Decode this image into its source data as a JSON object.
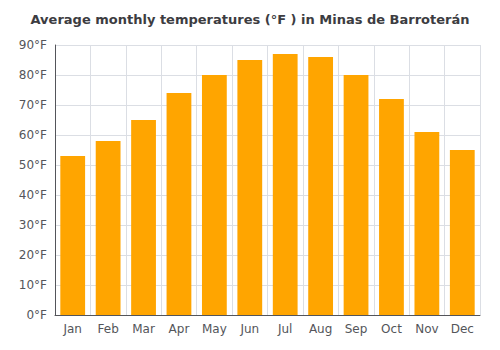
{
  "chart_data": {
    "type": "bar",
    "title": "Average monthly temperatures (°F ) in Minas de Barroterán",
    "categories": [
      "Jan",
      "Feb",
      "Mar",
      "Apr",
      "May",
      "Jun",
      "Jul",
      "Aug",
      "Sep",
      "Oct",
      "Nov",
      "Dec"
    ],
    "values": [
      53,
      58,
      65,
      74,
      80,
      85,
      87,
      86,
      80,
      72,
      61,
      55
    ],
    "color": "#FFA500",
    "ylim": [
      0,
      90
    ],
    "yticks": [
      {
        "value": 0,
        "label": "0°F"
      },
      {
        "value": 10,
        "label": "10°F"
      },
      {
        "value": 20,
        "label": "20°F"
      },
      {
        "value": 30,
        "label": "30°F"
      },
      {
        "value": 40,
        "label": "40°F"
      },
      {
        "value": 50,
        "label": "50°F"
      },
      {
        "value": 60,
        "label": "60°F"
      },
      {
        "value": 70,
        "label": "70°F"
      },
      {
        "value": 80,
        "label": "80°F"
      },
      {
        "value": 90,
        "label": "90°F"
      }
    ],
    "grid": true
  }
}
